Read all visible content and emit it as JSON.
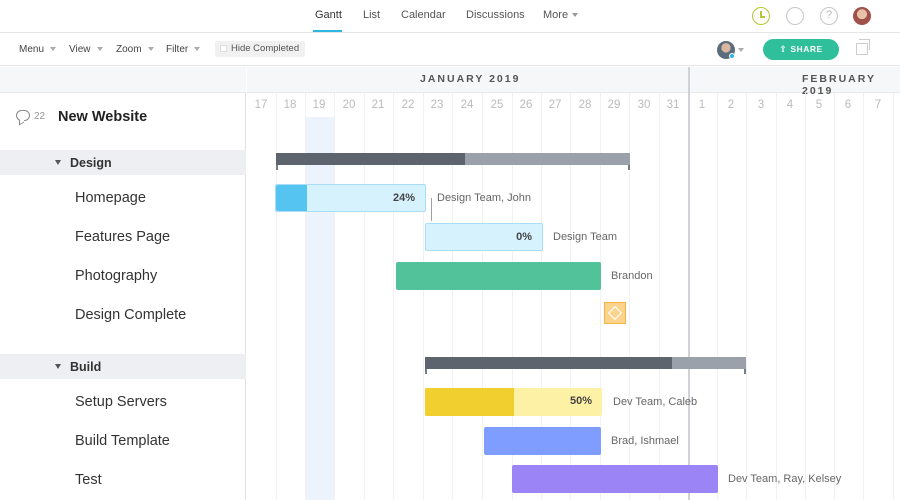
{
  "nav": {
    "tabs": [
      {
        "label": "Gantt",
        "active": true
      },
      {
        "label": "List"
      },
      {
        "label": "Calendar"
      },
      {
        "label": "Discussions"
      },
      {
        "label": "More"
      }
    ],
    "icons": [
      "clock-icon",
      "search-icon",
      "help-icon",
      "avatar"
    ]
  },
  "toolbar": {
    "menu": "Menu",
    "view": "View",
    "zoom": "Zoom",
    "filter": "Filter",
    "hide_completed": "Hide Completed",
    "share": "SHARE"
  },
  "project": {
    "comment_count": "22",
    "title": "New Website"
  },
  "months": [
    "JANUARY 2019",
    "FEBRUARY 2019"
  ],
  "days": [
    "17",
    "18",
    "19",
    "20",
    "21",
    "22",
    "23",
    "24",
    "25",
    "26",
    "27",
    "28",
    "29",
    "30",
    "31",
    "1",
    "2",
    "3",
    "4",
    "5",
    "6",
    "7"
  ],
  "groups": [
    {
      "label": "Design",
      "tasks": [
        {
          "label": "Homepage",
          "percent": "24%",
          "assignee": "Design Team, John"
        },
        {
          "label": "Features Page",
          "percent": "0%",
          "assignee": "Design Team"
        },
        {
          "label": "Photography",
          "assignee": "Brandon"
        },
        {
          "label": "Design Complete",
          "milestone": true
        }
      ]
    },
    {
      "label": "Build",
      "tasks": [
        {
          "label": "Setup Servers",
          "percent": "50%",
          "assignee": "Dev Team, Caleb"
        },
        {
          "label": "Build Template",
          "assignee": "Brad, Ishmael"
        },
        {
          "label": "Test",
          "assignee": "Dev Team, Ray, Kelsey"
        }
      ]
    }
  ],
  "colors": {
    "accent": "#2fb7e4",
    "share": "#2fbf9b",
    "homepage_done": "#56c4f0",
    "homepage_rest": "#d6f2fd",
    "photography": "#52c29a",
    "setup_done": "#f0cf2e",
    "setup_rest": "#fdf1a6",
    "build_template": "#7f9dff",
    "test": "#9b84f5",
    "milestone": "#fbd38d"
  }
}
